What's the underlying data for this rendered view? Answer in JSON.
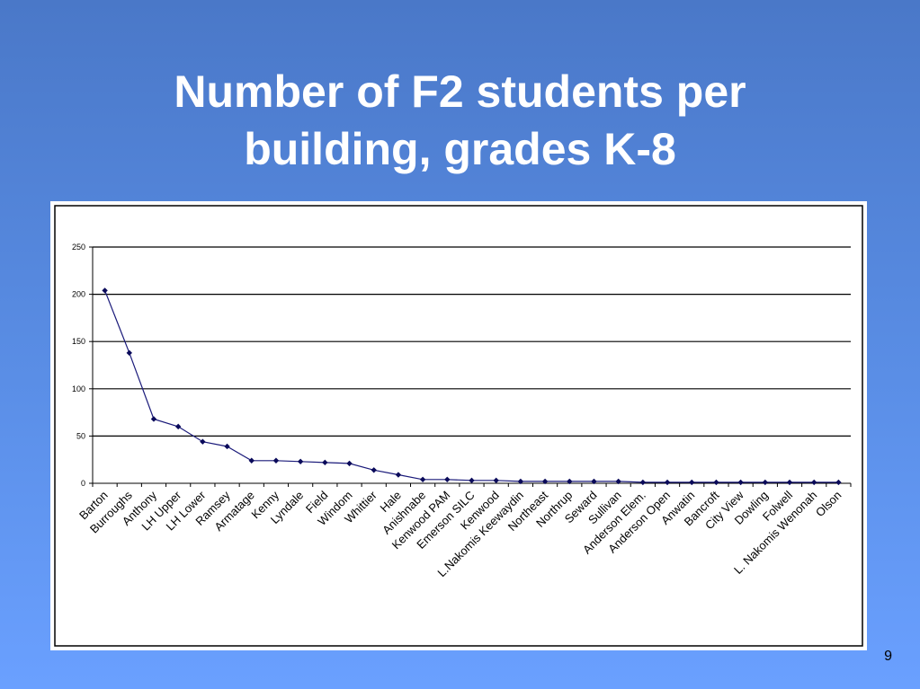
{
  "slide": {
    "title_lines": [
      "Number of F2 students per",
      "building, grades K-8"
    ],
    "page_number": "9"
  },
  "colors": {
    "series_line": "#1a1a7a",
    "marker": "#0a0a5a",
    "gridline": "#000000"
  },
  "chart_data": {
    "type": "line",
    "title": "",
    "xlabel": "",
    "ylabel": "",
    "ylim": [
      0,
      250
    ],
    "yticks": [
      0,
      50,
      100,
      150,
      200,
      250
    ],
    "grid": true,
    "categories": [
      "Barton",
      "Burroughs",
      "Anthony",
      "LH Upper",
      "LH Lower",
      "Ramsey",
      "Armatage",
      "Kenny",
      "Lyndale",
      "Field",
      "Windom",
      "Whittier",
      "Hale",
      "Anishnabe",
      "Kenwood PAM",
      "Emerson SILC",
      "Kenwood",
      "L.Nakomis Keewaydin",
      "Northeast",
      "Northrup",
      "Seward",
      "Sullivan",
      "Anderson Elem.",
      "Anderson Open",
      "Anwatin",
      "Bancroft",
      "City View",
      "Dowling",
      "Folwell",
      "L. Nakomis Wenonah",
      "Olson"
    ],
    "series": [
      {
        "values": [
          204,
          138,
          68,
          60,
          44,
          39,
          24,
          24,
          23,
          22,
          21,
          14,
          9,
          4,
          4,
          3,
          3,
          2,
          2,
          2,
          2,
          2,
          1,
          1,
          1,
          1,
          1,
          1,
          1,
          1,
          1
        ]
      }
    ]
  }
}
